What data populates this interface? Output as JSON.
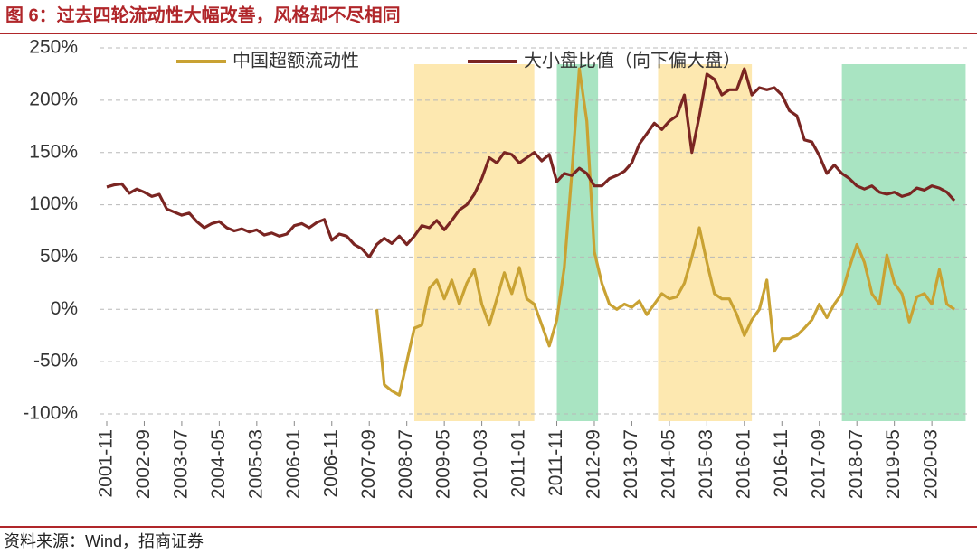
{
  "chart_data": {
    "type": "line",
    "title": "图 6：过去四轮流动性大幅改善，风格却不尽相同",
    "source": "资料来源：Wind，招商证券",
    "categories": [
      "2001-11",
      null,
      null,
      null,
      null,
      "2002-09",
      null,
      null,
      null,
      null,
      "2003-07",
      null,
      null,
      null,
      null,
      "2004-05",
      null,
      null,
      null,
      null,
      "2005-03",
      null,
      null,
      null,
      null,
      "2006-01",
      null,
      null,
      null,
      null,
      "2006-11",
      null,
      null,
      null,
      null,
      "2007-09",
      null,
      null,
      null,
      null,
      "2008-07",
      null,
      null,
      null,
      null,
      "2009-05",
      null,
      null,
      null,
      null,
      "2010-03",
      null,
      null,
      null,
      null,
      "2011-01",
      null,
      null,
      null,
      null,
      "2011-11",
      null,
      null,
      null,
      null,
      "2012-09",
      null,
      null,
      null,
      null,
      "2013-07",
      null,
      null,
      null,
      null,
      "2014-05",
      null,
      null,
      null,
      null,
      "2015-03",
      null,
      null,
      null,
      null,
      "2016-01",
      null,
      null,
      null,
      null,
      "2016-11",
      null,
      null,
      null,
      null,
      "2017-09",
      null,
      null,
      null,
      null,
      "2018-07",
      null,
      null,
      null,
      null,
      "2019-05",
      null,
      null,
      null,
      null,
      "2020-03",
      null,
      null,
      null
    ],
    "series": [
      {
        "name": "中国超额流动性",
        "color": "#c9a233",
        "values": [
          null,
          null,
          null,
          null,
          null,
          null,
          null,
          null,
          null,
          null,
          null,
          null,
          null,
          null,
          null,
          null,
          null,
          null,
          null,
          null,
          null,
          null,
          null,
          null,
          null,
          null,
          null,
          null,
          null,
          null,
          null,
          null,
          null,
          null,
          null,
          null,
          0,
          -72,
          -78,
          -82,
          -50,
          -18,
          -15,
          20,
          28,
          10,
          28,
          5,
          25,
          38,
          5,
          -15,
          10,
          35,
          15,
          40,
          10,
          5,
          -15,
          -35,
          -10,
          40,
          130,
          230,
          180,
          55,
          25,
          5,
          0,
          5,
          2,
          8,
          -5,
          5,
          15,
          10,
          12,
          25,
          50,
          78,
          45,
          15,
          10,
          10,
          -5,
          -25,
          -10,
          0,
          28,
          -40,
          -28,
          -28,
          -25,
          -18,
          -10,
          5,
          -8,
          5,
          15,
          40,
          62,
          45,
          15,
          5,
          52,
          25,
          15,
          -12,
          12,
          15,
          5,
          38,
          5,
          0
        ]
      },
      {
        "name": "大小盘比值（向下偏大盘）",
        "color": "#7a2522",
        "values": [
          117,
          119,
          120,
          111,
          115,
          112,
          108,
          110,
          96,
          93,
          90,
          92,
          84,
          78,
          82,
          84,
          78,
          75,
          77,
          74,
          76,
          71,
          73,
          70,
          72,
          80,
          82,
          78,
          83,
          86,
          66,
          72,
          70,
          62,
          58,
          50,
          62,
          68,
          63,
          70,
          62,
          70,
          80,
          78,
          85,
          76,
          85,
          95,
          100,
          110,
          125,
          145,
          140,
          150,
          148,
          140,
          145,
          150,
          142,
          148,
          122,
          130,
          128,
          135,
          130,
          118,
          118,
          125,
          128,
          132,
          140,
          158,
          168,
          178,
          172,
          180,
          185,
          205,
          150,
          185,
          225,
          220,
          205,
          210,
          210,
          230,
          205,
          212,
          210,
          212,
          205,
          190,
          185,
          162,
          160,
          147,
          130,
          138,
          130,
          125,
          118,
          115,
          118,
          112,
          110,
          112,
          108,
          110,
          116,
          114,
          118,
          116,
          112,
          104
        ]
      }
    ],
    "shaded_regions": [
      {
        "start": "2008-09",
        "end": "2011-05",
        "color": "#fde8b0"
      },
      {
        "start": "2011-11",
        "end": "2012-10",
        "color": "#a9e4c2"
      },
      {
        "start": "2014-02",
        "end": "2016-03",
        "color": "#fde8b0"
      },
      {
        "start": "2018-03",
        "end": "2020-12",
        "color": "#a9e4c2"
      }
    ],
    "ylim": [
      -100,
      250
    ],
    "yticks": [
      {
        "value": -100,
        "label": "-100%"
      },
      {
        "value": -50,
        "label": "-50%"
      },
      {
        "value": 0,
        "label": "0%"
      },
      {
        "value": 50,
        "label": "50%"
      },
      {
        "value": 100,
        "label": "100%"
      },
      {
        "value": 150,
        "label": "150%"
      },
      {
        "value": 200,
        "label": "200%"
      },
      {
        "value": 250,
        "label": "250%"
      }
    ],
    "grid": true,
    "legend": "top"
  }
}
